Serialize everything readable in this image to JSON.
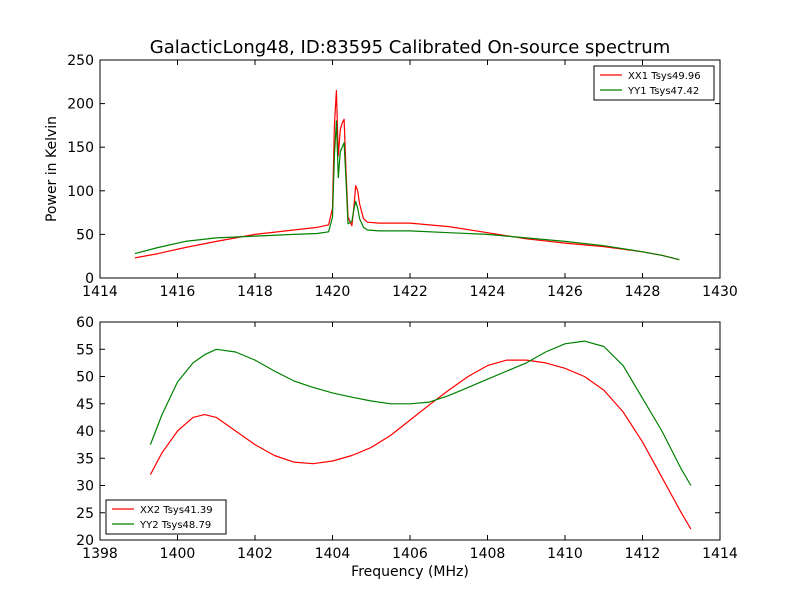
{
  "title": "GalacticLong48, ID:83595 Calibrated On-source spectrum",
  "colors": {
    "red": "#ff0000",
    "green": "#008000"
  },
  "chart_data": [
    {
      "type": "line",
      "ylabel": "Power in Kelvin",
      "xlabel": "",
      "xlim": [
        1414,
        1430
      ],
      "ylim": [
        0,
        250
      ],
      "xticks": [
        1414,
        1416,
        1418,
        1420,
        1422,
        1424,
        1426,
        1428,
        1430
      ],
      "yticks": [
        0,
        50,
        100,
        150,
        200,
        250
      ],
      "legend": "top-right",
      "series": [
        {
          "name": "XX1 Tsys49.96",
          "color": "#ff0000",
          "x": [
            1414.9,
            1415.5,
            1416.2,
            1417.0,
            1418.0,
            1419.0,
            1419.6,
            1419.9,
            1420.0,
            1420.05,
            1420.1,
            1420.15,
            1420.2,
            1420.25,
            1420.3,
            1420.35,
            1420.4,
            1420.5,
            1420.55,
            1420.6,
            1420.65,
            1420.7,
            1420.8,
            1420.9,
            1421.2,
            1422.0,
            1423.0,
            1424.0,
            1425.0,
            1426.0,
            1427.0,
            1428.0,
            1428.5,
            1428.95
          ],
          "y": [
            23,
            28,
            35,
            42,
            50,
            55,
            58,
            61,
            80,
            175,
            215,
            140,
            170,
            178,
            182,
            120,
            70,
            60,
            80,
            106,
            100,
            85,
            68,
            64,
            63,
            63,
            59,
            52,
            45,
            40,
            36,
            30,
            26,
            21
          ]
        },
        {
          "name": "YY1 Tsys47.42",
          "color": "#008000",
          "x": [
            1414.9,
            1415.5,
            1416.2,
            1417.0,
            1418.0,
            1419.0,
            1419.6,
            1419.9,
            1420.0,
            1420.05,
            1420.1,
            1420.15,
            1420.2,
            1420.25,
            1420.3,
            1420.35,
            1420.4,
            1420.5,
            1420.55,
            1420.6,
            1420.65,
            1420.7,
            1420.8,
            1420.9,
            1421.2,
            1422.0,
            1423.0,
            1424.0,
            1425.0,
            1426.0,
            1427.0,
            1428.0,
            1428.5,
            1428.95
          ],
          "y": [
            28,
            35,
            42,
            46,
            48,
            50,
            51,
            53,
            70,
            140,
            180,
            115,
            145,
            150,
            155,
            110,
            62,
            65,
            78,
            88,
            80,
            68,
            58,
            55,
            54,
            54,
            52,
            50,
            46,
            42,
            37,
            30,
            26,
            21
          ]
        }
      ]
    },
    {
      "type": "line",
      "xlabel": "Frequency (MHz)",
      "ylabel": "",
      "xlim": [
        1398,
        1414
      ],
      "ylim": [
        20,
        60
      ],
      "xticks": [
        1398,
        1400,
        1402,
        1404,
        1406,
        1408,
        1410,
        1412,
        1414
      ],
      "yticks": [
        20,
        25,
        30,
        35,
        40,
        45,
        50,
        55,
        60
      ],
      "legend": "bottom-left",
      "series": [
        {
          "name": "XX2 Tsys41.39",
          "color": "#ff0000",
          "x": [
            1399.3,
            1399.6,
            1400.0,
            1400.4,
            1400.7,
            1401.0,
            1401.5,
            1402.0,
            1402.5,
            1403.0,
            1403.5,
            1404.0,
            1404.5,
            1405.0,
            1405.5,
            1406.0,
            1406.5,
            1407.0,
            1407.5,
            1408.0,
            1408.5,
            1409.0,
            1409.5,
            1410.0,
            1410.5,
            1411.0,
            1411.5,
            1412.0,
            1412.5,
            1413.0,
            1413.25
          ],
          "y": [
            32,
            36,
            40,
            42.5,
            43,
            42.5,
            40,
            37.5,
            35.5,
            34.3,
            34,
            34.5,
            35.5,
            37,
            39.2,
            42,
            44.8,
            47.5,
            50,
            52,
            53,
            53,
            52.5,
            51.5,
            50,
            47.5,
            43.5,
            38,
            31.5,
            25,
            22
          ]
        },
        {
          "name": "YY2 Tsys48.79",
          "color": "#008000",
          "x": [
            1399.3,
            1399.6,
            1400.0,
            1400.4,
            1400.7,
            1401.0,
            1401.5,
            1402.0,
            1402.5,
            1403.0,
            1403.5,
            1404.0,
            1404.5,
            1405.0,
            1405.5,
            1406.0,
            1406.5,
            1407.0,
            1407.5,
            1408.0,
            1408.5,
            1409.0,
            1409.5,
            1410.0,
            1410.5,
            1411.0,
            1411.5,
            1412.0,
            1412.5,
            1413.0,
            1413.25
          ],
          "y": [
            37.5,
            43,
            49,
            52.5,
            54,
            55,
            54.5,
            53,
            51,
            49.2,
            48,
            47,
            46.2,
            45.5,
            45,
            45,
            45.3,
            46.5,
            48,
            49.5,
            51,
            52.5,
            54.5,
            56,
            56.5,
            55.5,
            52,
            46,
            40,
            33,
            30
          ]
        }
      ]
    }
  ]
}
